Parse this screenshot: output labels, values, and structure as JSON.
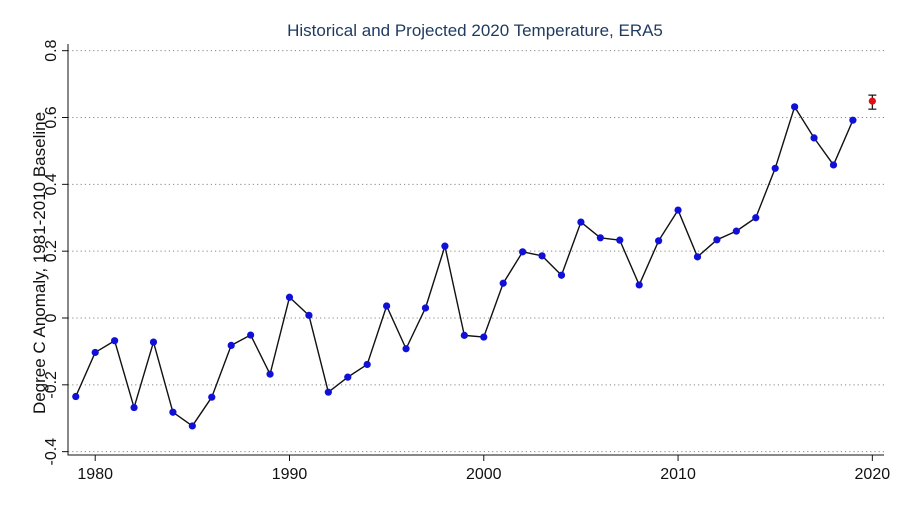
{
  "chart_data": {
    "type": "line",
    "title": "Historical and Projected 2020 Temperature, ERA5",
    "xlabel": "",
    "ylabel": "Degree C Anomaly, 1981-2010 Baseline",
    "xlim": [
      1978.6,
      2020.6
    ],
    "ylim": [
      -0.41,
      0.82
    ],
    "xticks": [
      1980,
      1990,
      2000,
      2010,
      2020
    ],
    "yticks": [
      -0.4,
      -0.2,
      0,
      0.2,
      0.4,
      0.6,
      0.8
    ],
    "ytick_labels": [
      "-0.4",
      "-0.2",
      "0",
      "0.2",
      "0.4",
      "0.6",
      "0.8"
    ],
    "grid": "horizontal dotted",
    "series": [
      {
        "color": "#1010d8",
        "line_color": "#111111",
        "x": [
          1979,
          1980,
          1981,
          1982,
          1983,
          1984,
          1985,
          1986,
          1987,
          1988,
          1989,
          1990,
          1991,
          1992,
          1993,
          1994,
          1995,
          1996,
          1997,
          1998,
          1999,
          2000,
          2001,
          2002,
          2003,
          2004,
          2005,
          2006,
          2007,
          2008,
          2009,
          2010,
          2011,
          2012,
          2013,
          2014,
          2015,
          2016,
          2017,
          2018,
          2019
        ],
        "y": [
          -0.235,
          -0.103,
          -0.068,
          -0.268,
          -0.072,
          -0.282,
          -0.323,
          -0.237,
          -0.082,
          -0.051,
          -0.168,
          0.062,
          0.008,
          -0.222,
          -0.177,
          -0.139,
          0.036,
          -0.092,
          0.03,
          0.215,
          -0.052,
          -0.057,
          0.104,
          0.198,
          0.186,
          0.128,
          0.287,
          0.24,
          0.233,
          0.099,
          0.231,
          0.323,
          0.183,
          0.234,
          0.26,
          0.3,
          0.448,
          0.632,
          0.539,
          0.458,
          0.592
        ]
      },
      {
        "color": "#e01010",
        "errorbar_color": "#111111",
        "x": [
          2020
        ],
        "y": [
          0.649
        ],
        "yerr_low": [
          0.625
        ],
        "yerr_high": [
          0.667
        ]
      }
    ]
  }
}
